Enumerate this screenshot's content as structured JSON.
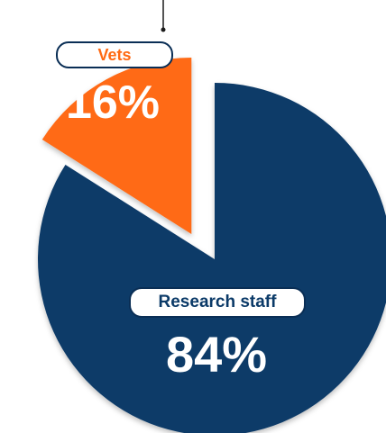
{
  "chart_data": {
    "type": "pie",
    "slices": [
      {
        "label": "Vets",
        "value": 16,
        "value_label": "16%",
        "color": "#ff6a13",
        "exploded": true
      },
      {
        "label": "Research staff",
        "value": 84,
        "value_label": "84%",
        "color": "#0b3a68",
        "exploded": false
      }
    ]
  }
}
